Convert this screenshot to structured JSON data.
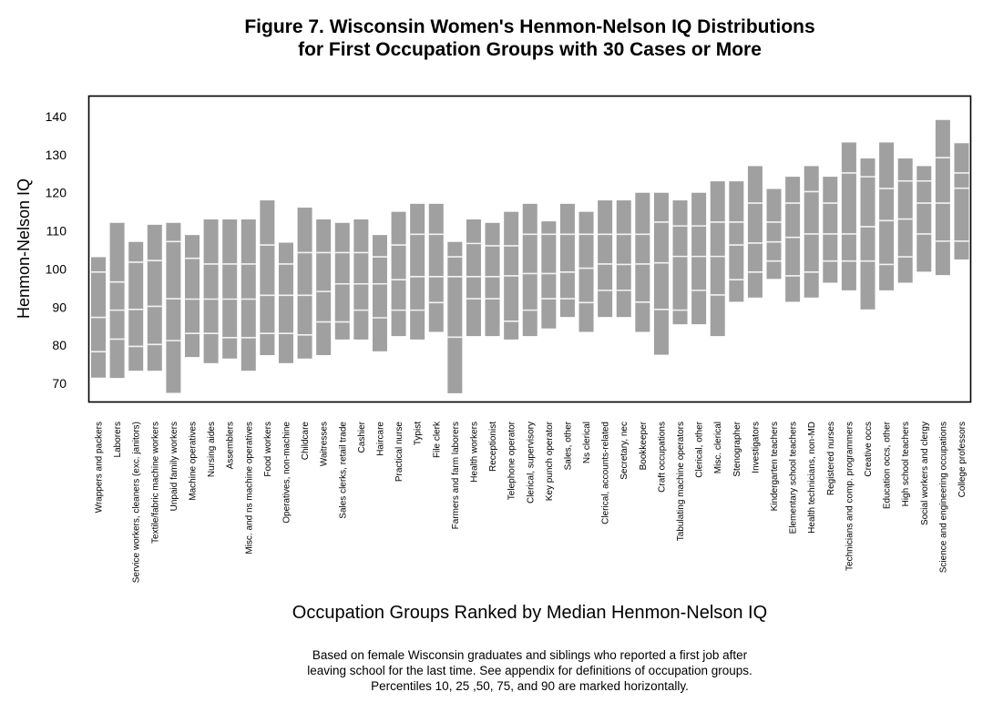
{
  "chart_data": {
    "type": "bar",
    "subtype": "percentile-range-bars",
    "title_lines": [
      "Figure 7. Wisconsin Women's Henmon-Nelson IQ Distributions",
      "for First Occupation Groups with 30 Cases or More"
    ],
    "xlabel": "Occupation Groups Ranked by Median Henmon-Nelson IQ",
    "ylabel": "Henmon-Nelson IQ",
    "ylim": [
      65,
      145
    ],
    "yticks": [
      70,
      80,
      90,
      100,
      110,
      120,
      130,
      140
    ],
    "grid": false,
    "legend": "none",
    "percentiles": [
      10,
      25,
      50,
      75,
      90
    ],
    "bar_color": "#a0a0a0",
    "caption_lines": [
      "Based on female Wisconsin graduates and siblings who reported a first job after",
      "leaving school for the last time.  See appendix for definitions of occupation groups.",
      "Percentiles 10, 25 ,50, 75, and 90 are marked horizontally."
    ],
    "categories": [
      "Wrappers and packers",
      "Laborers",
      "Service workers, cleaners (exc. janitors)",
      "Textile/fabric machine workers",
      "Unpaid family workers",
      "Machine operatives",
      "Nursing aides",
      "Assemblers",
      "Misc. and ns machine operatives",
      "Food workers",
      "Operatives, non-machine",
      "Childcare",
      "Waitresses",
      "Sales clerks, retail trade",
      "Cashier",
      "Haircare",
      "Practical nurse",
      "Typist",
      "File clerk",
      "Farmers and farm laborers",
      "Health workers",
      "Receptionist",
      "Telephone operator",
      "Clerical, supervisory",
      "Key punch operator",
      "Sales, other",
      "Ns clerical",
      "Clerical, accounts-related",
      "Secretary, nec",
      "Bookkeeper",
      "Craft occupations",
      "Tabulating machine operators",
      "Clerical, other",
      "Misc. clerical",
      "Stenographer",
      "Investigators",
      "Kindergarten teachers",
      "Elementary school teachers",
      "Health technicians, non-MD",
      "Registered nurses",
      "Technicians and comp. programmers",
      "Creative occs",
      "Education occs, other",
      "High school teachers",
      "Social workers and clergy",
      "Science and engineering occupations",
      "College professors"
    ],
    "values": [
      [
        71.5,
        78.3,
        87.3,
        99.2,
        103.1
      ],
      [
        71.4,
        81.6,
        89.2,
        96.6,
        112.1
      ],
      [
        73.3,
        79.7,
        89.4,
        101.8,
        107.1
      ],
      [
        73.3,
        80.2,
        90.2,
        102.2,
        111.6
      ],
      [
        67.5,
        81.2,
        92.2,
        107.2,
        112.1
      ],
      [
        76.9,
        83.1,
        92.1,
        102.8,
        108.9
      ],
      [
        75.3,
        83.1,
        92.1,
        101.3,
        113.0
      ],
      [
        76.5,
        82.0,
        92.1,
        101.3,
        113.0
      ],
      [
        73.3,
        82.0,
        92.1,
        101.3,
        113.0
      ],
      [
        77.4,
        83.1,
        93.1,
        106.3,
        118.0
      ],
      [
        75.3,
        83.1,
        93.1,
        101.3,
        106.9
      ],
      [
        76.5,
        82.7,
        93.1,
        104.3,
        116.1
      ],
      [
        77.4,
        86.1,
        94.1,
        104.3,
        113.0
      ],
      [
        81.5,
        86.1,
        96.1,
        104.3,
        112.1
      ],
      [
        81.5,
        89.2,
        96.1,
        104.3,
        113.0
      ],
      [
        78.4,
        87.2,
        96.1,
        103.2,
        108.9
      ],
      [
        82.4,
        89.2,
        97.2,
        106.3,
        115.0
      ],
      [
        81.5,
        89.2,
        98.0,
        109.1,
        117.1
      ],
      [
        83.5,
        91.2,
        98.0,
        109.1,
        117.1
      ],
      [
        67.4,
        82.1,
        98.0,
        103.2,
        107.1
      ],
      [
        82.4,
        92.2,
        98.0,
        106.7,
        113.0
      ],
      [
        82.4,
        92.2,
        98.0,
        106.1,
        112.1
      ],
      [
        81.5,
        86.3,
        98.2,
        106.1,
        115.0
      ],
      [
        82.4,
        89.2,
        98.8,
        109.1,
        117.1
      ],
      [
        84.4,
        92.2,
        98.8,
        109.1,
        112.5
      ],
      [
        87.4,
        92.2,
        99.2,
        109.1,
        117.1
      ],
      [
        83.5,
        91.2,
        100.2,
        109.1,
        115.0
      ],
      [
        87.4,
        94.4,
        101.3,
        109.1,
        118.0
      ],
      [
        87.4,
        94.4,
        101.2,
        109.1,
        118.0
      ],
      [
        83.5,
        91.3,
        101.3,
        109.1,
        120.0
      ],
      [
        77.5,
        89.4,
        101.6,
        112.3,
        120.0
      ],
      [
        85.5,
        89.2,
        103.3,
        111.3,
        118.0
      ],
      [
        85.5,
        94.4,
        103.3,
        111.3,
        120.0
      ],
      [
        82.4,
        93.2,
        103.3,
        112.3,
        123.0
      ],
      [
        91.4,
        97.2,
        106.3,
        112.3,
        123.0
      ],
      [
        92.5,
        99.2,
        106.8,
        117.3,
        127.0
      ],
      [
        97.4,
        102.1,
        107.1,
        112.3,
        121.0
      ],
      [
        91.4,
        98.2,
        108.3,
        117.3,
        124.2
      ],
      [
        92.5,
        99.2,
        109.2,
        120.3,
        127.0
      ],
      [
        96.4,
        102.1,
        109.2,
        117.3,
        124.2
      ],
      [
        94.4,
        102.1,
        109.2,
        125.2,
        133.2
      ],
      [
        89.4,
        102.1,
        111.1,
        124.2,
        129.0
      ],
      [
        94.4,
        101.2,
        112.7,
        121.1,
        133.2
      ],
      [
        96.4,
        103.2,
        113.1,
        123.1,
        129.0
      ],
      [
        99.3,
        109.2,
        117.3,
        123.1,
        127.0
      ],
      [
        98.4,
        107.3,
        117.3,
        129.2,
        139.1
      ],
      [
        102.5,
        107.3,
        121.2,
        125.2,
        133.0
      ]
    ]
  }
}
